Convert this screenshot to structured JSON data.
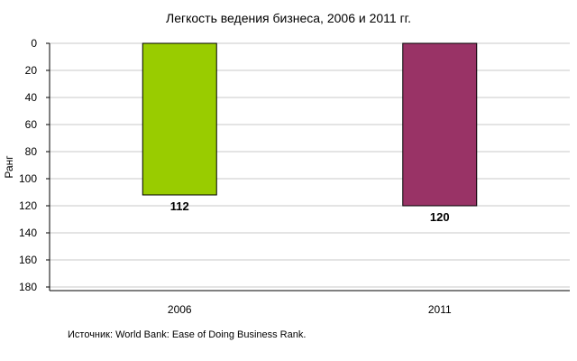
{
  "chart_data": {
    "type": "bar",
    "title": "Легкость ведения бизнеса, 2006 и 2011 гг.",
    "xlabel": "",
    "ylabel": "Ранг",
    "categories": [
      "2006",
      "2011"
    ],
    "values": [
      112,
      120
    ],
    "data_labels": [
      "112",
      "120"
    ],
    "colors": [
      "#99CC00",
      "#993366"
    ],
    "ylim": [
      0,
      180
    ],
    "y_inverted": true,
    "y_ticks": [
      0,
      20,
      40,
      60,
      80,
      100,
      120,
      140,
      160,
      180
    ],
    "grid": true,
    "legend": "none"
  },
  "source_note": "Источник: World Bank: Ease of Doing Business Rank."
}
